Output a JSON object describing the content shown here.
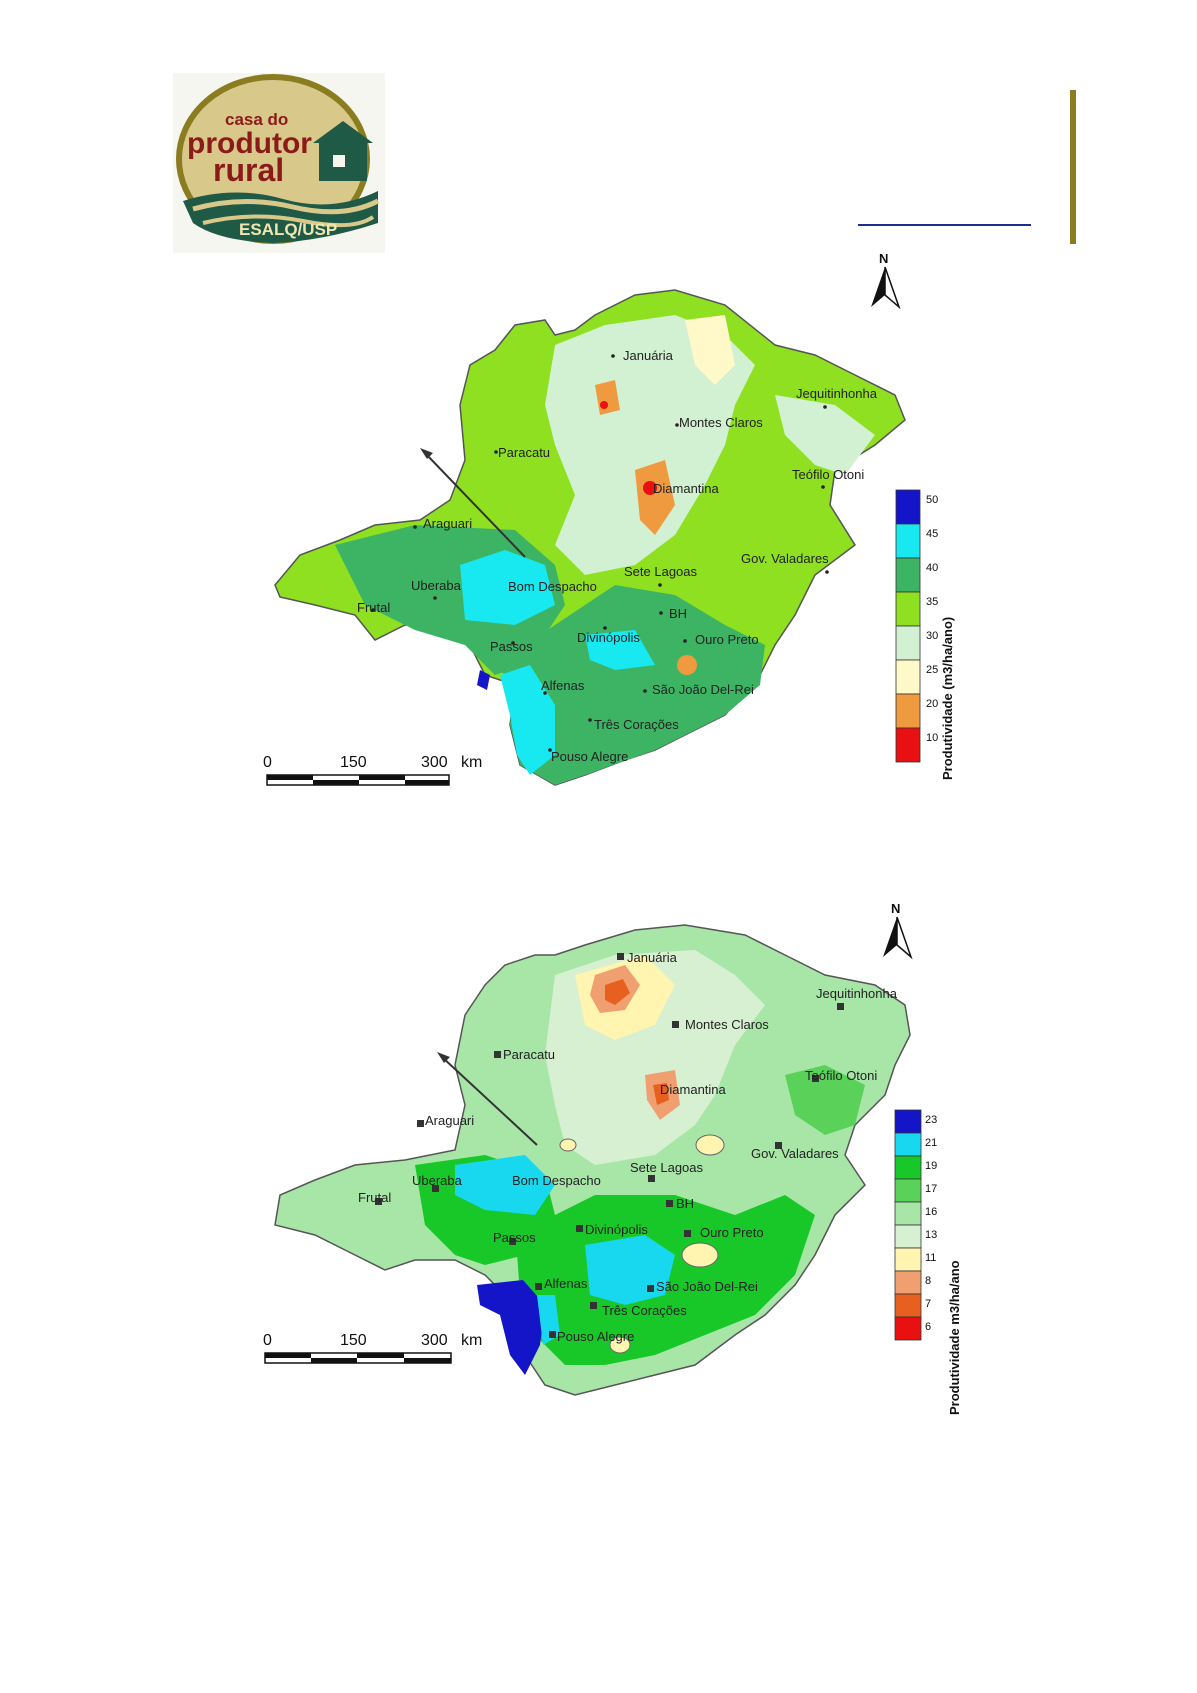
{
  "logo": {
    "line1": "casa do",
    "line2": "produtor",
    "line3": "rural",
    "line4": "ESALQ/USP",
    "color_outline": "#8a7c1f",
    "color_text": "#8b1a1a",
    "color_band": "#1f5a46"
  },
  "map1": {
    "north_label": "N",
    "scale_labels": [
      "0",
      "150",
      "300",
      "km"
    ],
    "legend_title": "Produtividade (m3/ha/ano)",
    "legend_values": [
      "50",
      "45",
      "40",
      "35",
      "30",
      "25",
      "20",
      "10"
    ],
    "legend_colors": [
      "#1414c8",
      "#18e8f0",
      "#3cb464",
      "#8ee020",
      "#d2f0d2",
      "#fff8c8",
      "#f09a40",
      "#e81010"
    ],
    "cities": {
      "januaria": "Januária",
      "jequitinhonha": "Jequitinhonha",
      "montes_claros": "Montes Claros",
      "paracatu": "Paracatu",
      "teofilo_otoni": "Teófilo Otoni",
      "diamantina": "Diamantina",
      "araguari": "Araguari",
      "gov_valadares": "Gov. Valadares",
      "uberaba": "Uberaba",
      "bom_despacho": "Bom Despacho",
      "sete_lagoas": "Sete Lagoas",
      "frutal": "Frutal",
      "bh": "BH",
      "divinopolis": "Divinópolis",
      "ouro_preto": "Ouro Preto",
      "passos": "Passos",
      "alfenas": "Alfenas",
      "sao_joao_del_rei": "São João Del-Rei",
      "tres_coracoes": "Três Corações",
      "pouso_alegre": "Pouso Alegre"
    }
  },
  "map2": {
    "north_label": "N",
    "scale_labels": [
      "0",
      "150",
      "300",
      "km"
    ],
    "legend_title": "Produtividade m3/ha/ano",
    "legend_values": [
      "23",
      "21",
      "19",
      "17",
      "16",
      "13",
      "11",
      "8",
      "7",
      "6"
    ],
    "legend_colors": [
      "#1414c8",
      "#18d8f0",
      "#18c828",
      "#5ad25a",
      "#a8e6a8",
      "#d8f0d2",
      "#fff4b0",
      "#f0a070",
      "#e86020",
      "#e81010"
    ],
    "cities": {
      "januaria": "Januária",
      "jequitinhonha": "Jequitinhonha",
      "montes_claros": "Montes Claros",
      "paracatu": "Paracatu",
      "teofilo_otoni": "Teófilo Otoni",
      "diamantina": "Diamantina",
      "araguari": "Araguari",
      "gov_valadares": "Gov. Valadares",
      "uberaba": "Uberaba",
      "bom_despacho": "Bom Despacho",
      "sete_lagoas": "Sete Lagoas",
      "frutal": "Frutal",
      "bh": "BH",
      "divinopolis": "Divinópolis",
      "ouro_preto": "Ouro Preto",
      "passos": "Passos",
      "alfenas": "Alfenas",
      "sao_joao_del_rei": "São João Del-Rei",
      "tres_coracoes": "Três Corações",
      "pouso_alegre": "Pouso Alegre"
    }
  }
}
